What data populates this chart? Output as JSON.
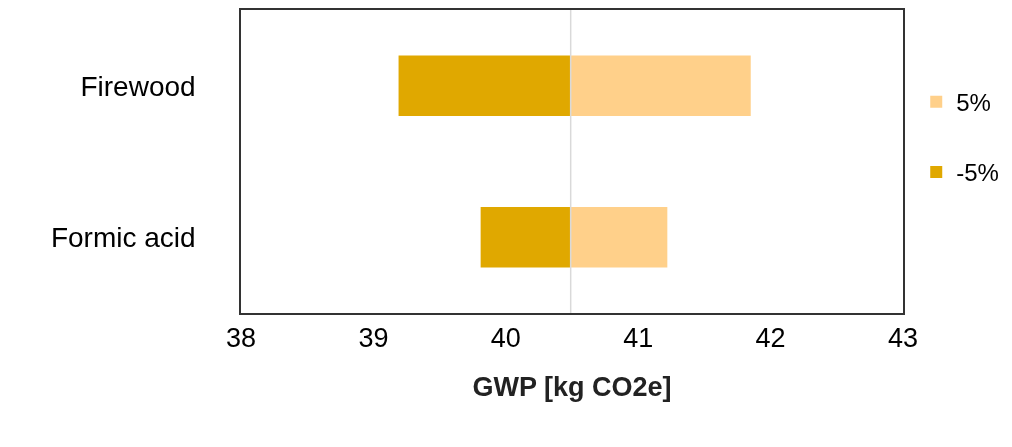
{
  "chart_data": {
    "type": "bar",
    "orientation": "horizontal",
    "xlabel": "GWP [kg CO2e]",
    "categories": [
      "Firewood",
      "Formic acid"
    ],
    "series": [
      {
        "name": "5%",
        "color": "#ffd08a",
        "values": [
          1.36,
          0.73
        ],
        "base": [
          40.49,
          40.49
        ]
      },
      {
        "name": "-5%",
        "color": "#e0a800",
        "values": [
          1.3,
          0.68
        ],
        "base": [
          39.19,
          39.81
        ]
      }
    ],
    "xlim": [
      38,
      43
    ],
    "xticks": [
      38,
      39,
      40,
      41,
      42,
      43
    ],
    "legend": "right",
    "ref_lines": [
      {
        "axis": "x",
        "value": 40.49,
        "color": "#d9d9d9"
      }
    ]
  }
}
